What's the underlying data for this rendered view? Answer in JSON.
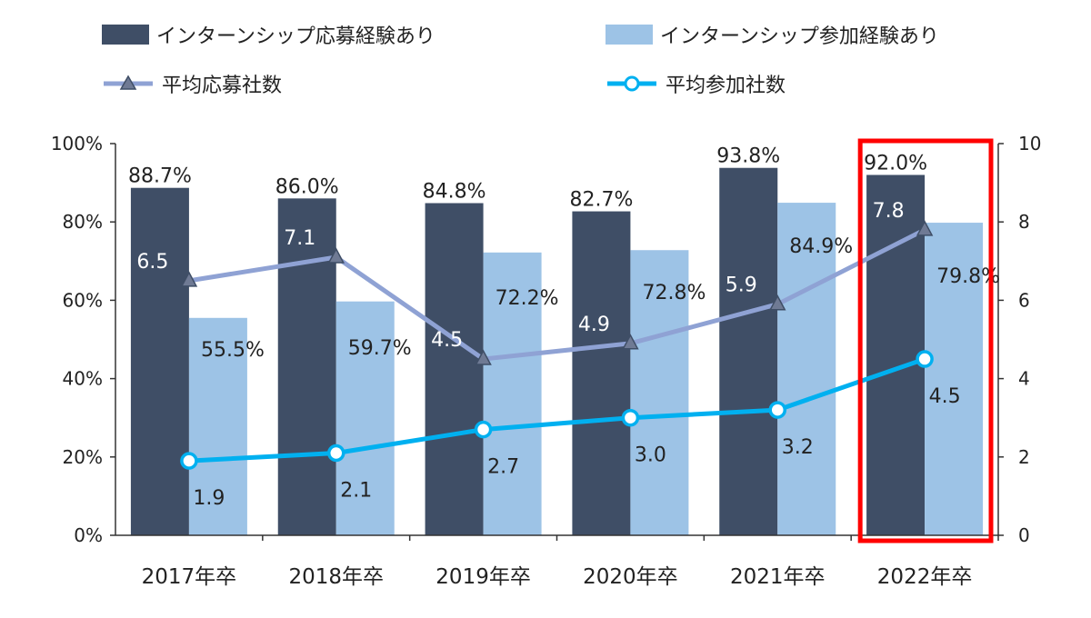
{
  "chart_data": {
    "type": "bar+line",
    "categories": [
      "2017年卒",
      "2018年卒",
      "2019年卒",
      "2020年卒",
      "2021年卒",
      "2022年卒"
    ],
    "bar_series": [
      {
        "name": "インターンシップ応募経験あり",
        "color": "#3f4e66",
        "values": [
          88.7,
          86.0,
          84.8,
          82.7,
          93.8,
          92.0
        ],
        "labels": [
          "88.7%",
          "86.0%",
          "84.8%",
          "82.7%",
          "93.8%",
          "92.0%"
        ]
      },
      {
        "name": "インターンシップ参加経験あり",
        "color": "#9dc3e6",
        "values": [
          55.5,
          59.7,
          72.2,
          72.8,
          84.9,
          79.8
        ],
        "labels": [
          "55.5%",
          "59.7%",
          "72.2%",
          "72.8%",
          "84.9%",
          "79.8%"
        ]
      }
    ],
    "line_series": [
      {
        "name": "平均応募社数",
        "color": "#8fa2d4",
        "marker": "triangle",
        "values": [
          6.5,
          7.1,
          4.5,
          4.9,
          5.9,
          7.8
        ],
        "labels": [
          "6.5",
          "7.1",
          "4.5",
          "4.9",
          "5.9",
          "7.8"
        ]
      },
      {
        "name": "平均参加社数",
        "color": "#00b0f0",
        "marker": "circle",
        "values": [
          1.9,
          2.1,
          2.7,
          3.0,
          3.2,
          4.5
        ],
        "labels": [
          "1.9",
          "2.1",
          "2.7",
          "3.0",
          "3.2",
          "4.5"
        ]
      }
    ],
    "y_left": {
      "min": 0,
      "max": 100,
      "ticks": [
        "0%",
        "20%",
        "40%",
        "60%",
        "80%",
        "100%"
      ]
    },
    "y_right": {
      "min": 0,
      "max": 10,
      "ticks": [
        "0",
        "2",
        "4",
        "6",
        "8",
        "10"
      ]
    },
    "highlight": {
      "category": "2022年卒",
      "color": "#ff0000"
    },
    "legend_position": "top"
  }
}
